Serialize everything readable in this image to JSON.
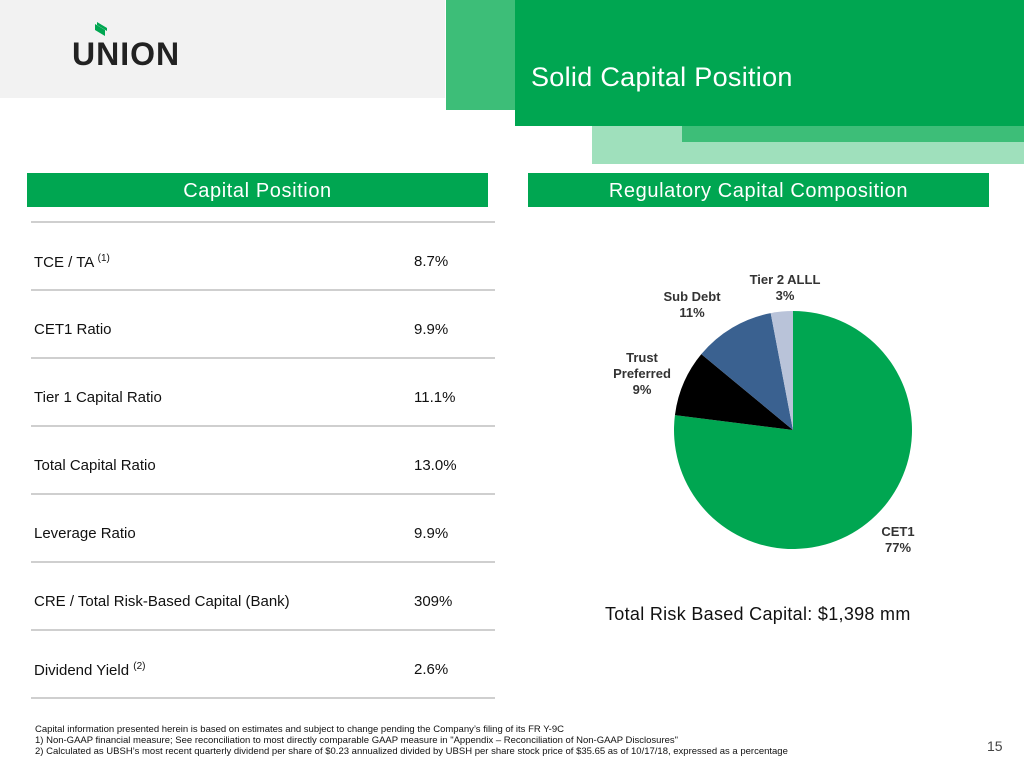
{
  "brand": {
    "logo_text": "UNION"
  },
  "header": {
    "title": "Solid Capital Position"
  },
  "capital_position": {
    "heading": "Capital Position",
    "rows": [
      {
        "label": "TCE / TA",
        "note": "(1)",
        "value": "8.7%"
      },
      {
        "label": "CET1 Ratio",
        "note": "",
        "value": "9.9%"
      },
      {
        "label": "Tier 1 Capital Ratio",
        "note": "",
        "value": "11.1%"
      },
      {
        "label": "Total Capital Ratio",
        "note": "",
        "value": "13.0%"
      },
      {
        "label": "Leverage Ratio",
        "note": "",
        "value": "9.9%"
      },
      {
        "label": "CRE / Total Risk-Based Capital (Bank)",
        "note": "",
        "value": "309%"
      },
      {
        "label": "Dividend Yield",
        "note": "(2)",
        "value": "2.6%"
      }
    ]
  },
  "composition": {
    "heading": "Regulatory Capital Composition",
    "total_text": "Total Risk Based Capital: $1,398 mm"
  },
  "chart_data": {
    "type": "pie",
    "title": "Regulatory Capital Composition",
    "slices": [
      {
        "label": "CET1",
        "value": 77,
        "value_text": "77%",
        "color": "#00a651"
      },
      {
        "label": "Trust Preferred",
        "value": 9,
        "value_text": "9%",
        "color": "#000000"
      },
      {
        "label": "Sub Debt",
        "value": 11,
        "value_text": "11%",
        "color": "#3a6190"
      },
      {
        "label": "Tier 2 ALLL",
        "value": 3,
        "value_text": "3%",
        "color": "#b9c3d9"
      }
    ]
  },
  "footnotes": {
    "line1": "Capital information presented herein is based on estimates and subject to change pending the Company’s filing of its FR Y-9C",
    "line2": "1) Non-GAAP financial measure; See reconciliation to most directly comparable GAAP measure in \"Appendix – Reconciliation of Non-GAAP Disclosures\"",
    "line3": "2) Calculated as UBSH’s most recent quarterly dividend per share of $0.23 annualized divided by UBSH per share stock price of $35.65 as of 10/17/18, expressed as a percentage"
  },
  "page_number": "15"
}
